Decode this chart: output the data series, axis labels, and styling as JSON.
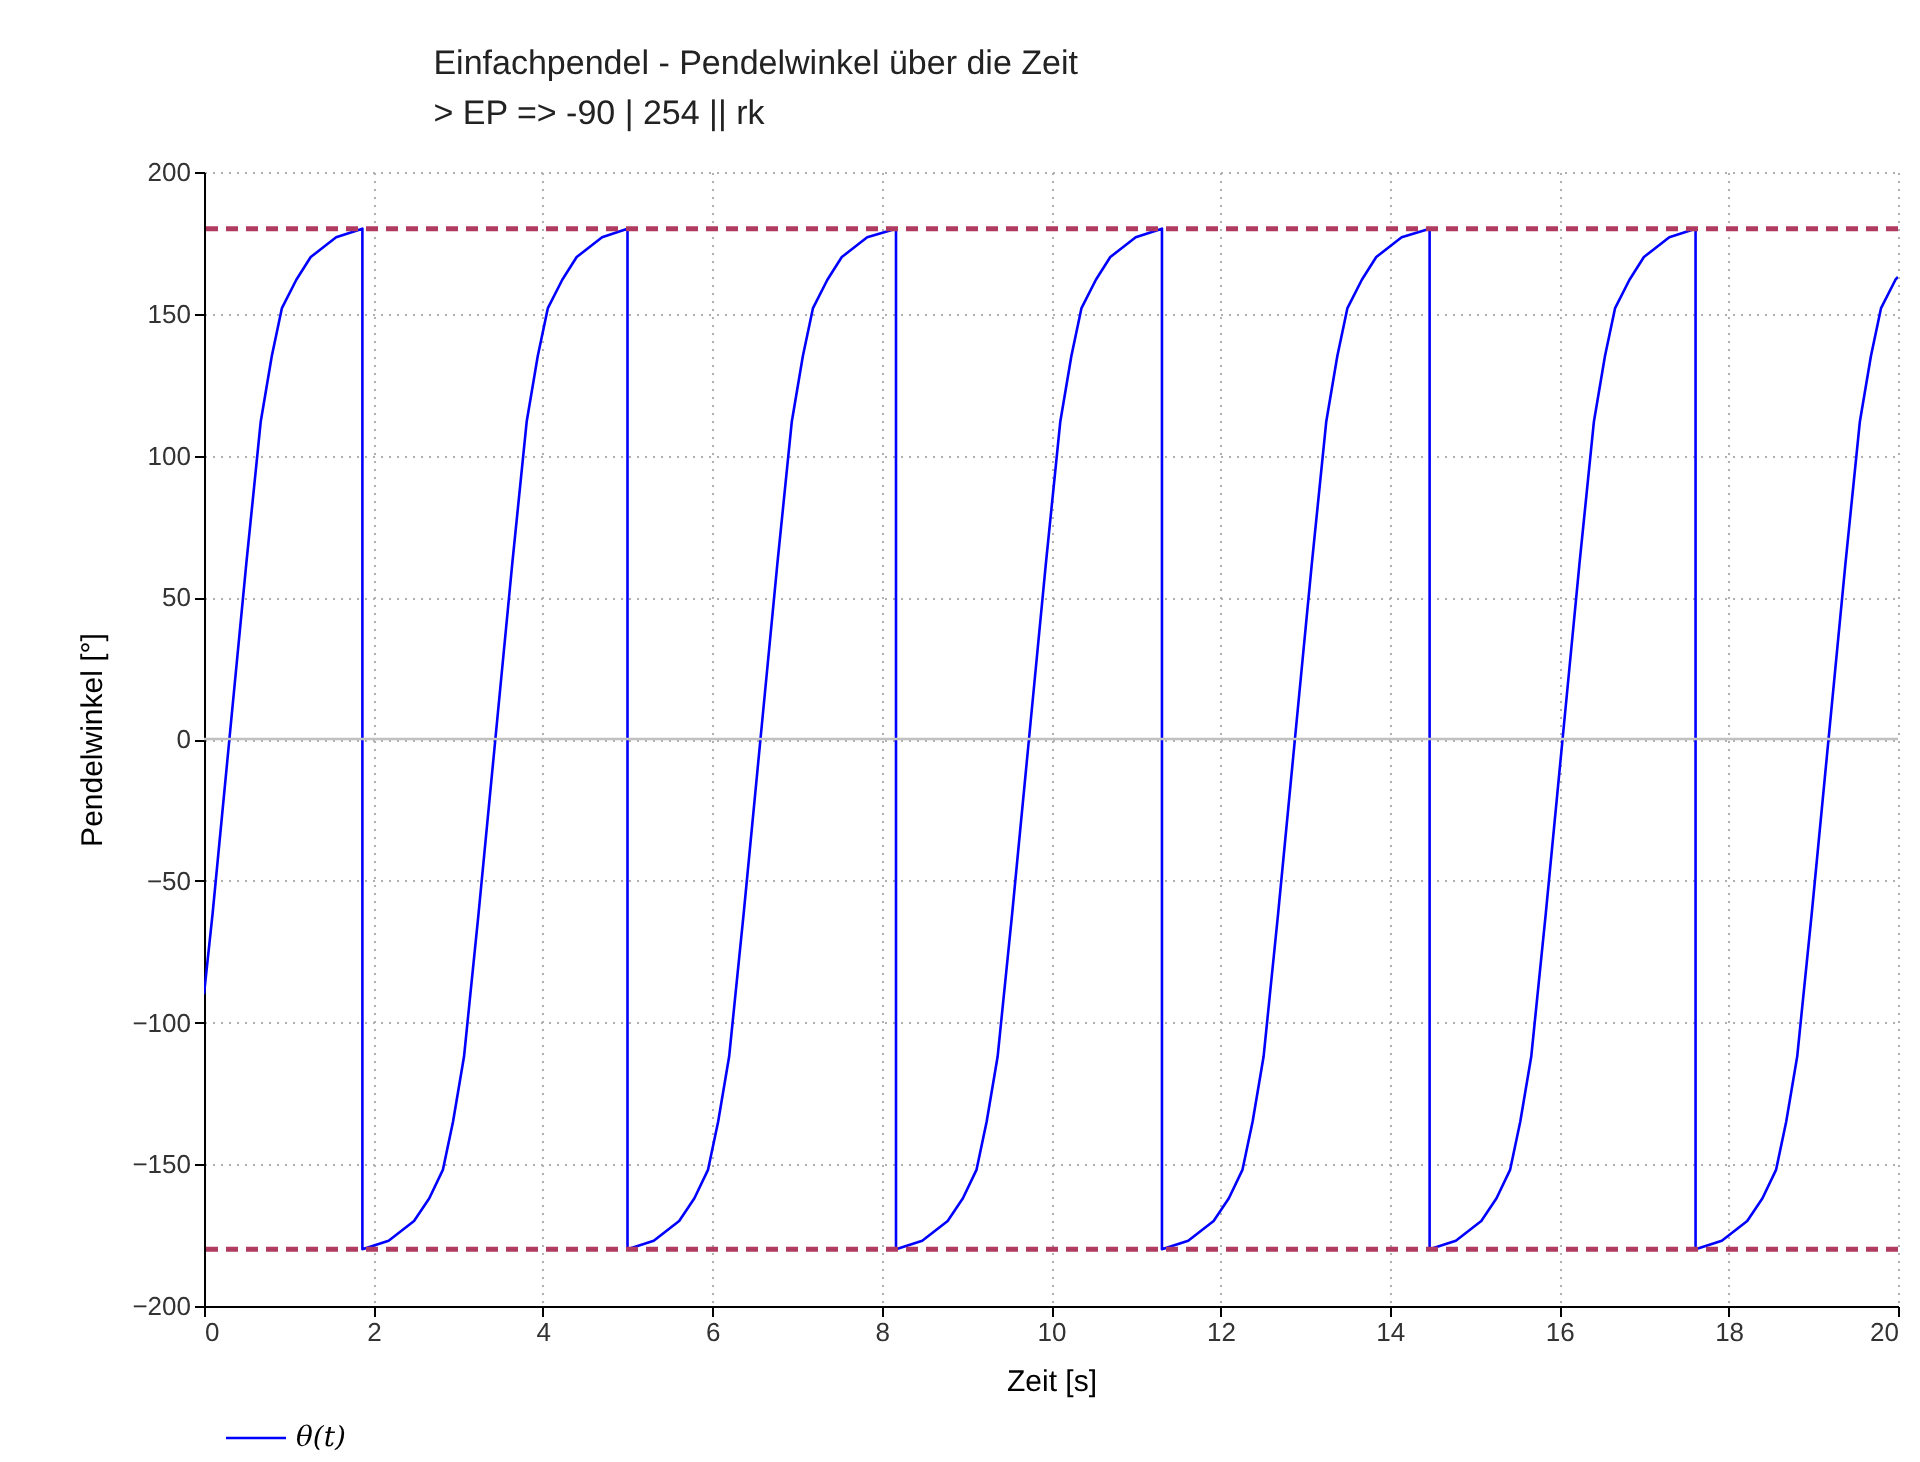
{
  "chart_data": {
    "type": "line",
    "title": "Einfachpendel - Pendelwinkel über die Zeit",
    "subtitle": ">   EP => -90 | 254 || rk",
    "xlabel": "Zeit [s]",
    "ylabel": "Pendelwinkel [°]",
    "xlim": [
      0,
      20
    ],
    "ylim": [
      -200,
      200
    ],
    "xticks": [
      0,
      2,
      4,
      6,
      8,
      10,
      12,
      14,
      16,
      18,
      20
    ],
    "yticks": [
      -200,
      -150,
      -100,
      -50,
      0,
      50,
      100,
      150,
      200
    ],
    "grid": true,
    "legend": "bottom left",
    "line_style": "solid",
    "ref_lines": [
      {
        "axis": "y",
        "value": 180,
        "color": "#b03a60",
        "line_style": "dashed"
      },
      {
        "axis": "y",
        "value": -180,
        "color": "#b03a60",
        "line_style": "dashed"
      },
      {
        "axis": "y",
        "value": 0,
        "color": "#c0c0c0",
        "line_style": "solid"
      }
    ],
    "series": [
      {
        "name": "θ(t)",
        "color": "#0000ff",
        "x": [
          0,
          0.1,
          0.3,
          0.5,
          0.67,
          0.8,
          0.92,
          1.09,
          1.26,
          1.56,
          1.87,
          1.87,
          2.18,
          2.48,
          2.66,
          2.82,
          2.94,
          3.07,
          3.24,
          3.44,
          3.64,
          3.81,
          3.94,
          4.06,
          4.23,
          4.4,
          4.7,
          5.0,
          5.0,
          5.31,
          5.61,
          5.79,
          5.95,
          6.07,
          6.2,
          6.37,
          6.57,
          6.77,
          6.94,
          7.07,
          7.19,
          7.36,
          7.53,
          7.83,
          8.17,
          8.17,
          8.48,
          8.78,
          8.96,
          9.12,
          9.24,
          9.37,
          9.54,
          9.74,
          9.94,
          10.11,
          10.24,
          10.36,
          10.53,
          10.7,
          11.0,
          11.31,
          11.31,
          11.62,
          11.92,
          12.1,
          12.26,
          12.38,
          12.51,
          12.68,
          12.88,
          13.08,
          13.25,
          13.38,
          13.5,
          13.67,
          13.84,
          14.14,
          14.47,
          14.47,
          14.78,
          15.08,
          15.26,
          15.42,
          15.54,
          15.67,
          15.84,
          16.04,
          16.24,
          16.41,
          16.54,
          16.66,
          16.83,
          17.0,
          17.3,
          17.61,
          17.61,
          17.92,
          18.22,
          18.4,
          18.56,
          18.68,
          18.81,
          18.98,
          19.18,
          19.38,
          19.55,
          19.68,
          19.8,
          19.97,
          20
        ],
        "values": [
          -90,
          -62,
          0,
          62,
          112,
          135,
          152,
          162,
          170,
          177,
          180,
          -180,
          -177,
          -170,
          -162,
          -152,
          -135,
          -112,
          -62,
          0,
          62,
          112,
          135,
          152,
          162,
          170,
          177,
          180,
          -180,
          -177,
          -170,
          -162,
          -152,
          -135,
          -112,
          -62,
          0,
          62,
          112,
          135,
          152,
          162,
          170,
          177,
          180,
          -180,
          -177,
          -170,
          -162,
          -152,
          -135,
          -112,
          -62,
          0,
          62,
          112,
          135,
          152,
          162,
          170,
          177,
          180,
          -180,
          -177,
          -170,
          -162,
          -152,
          -135,
          -112,
          -62,
          0,
          62,
          112,
          135,
          152,
          162,
          170,
          177,
          180,
          -180,
          -177,
          -170,
          -162,
          -152,
          -135,
          -112,
          -62,
          0,
          62,
          112,
          135,
          152,
          162,
          170,
          177,
          180,
          -180,
          -177,
          -170,
          -162,
          -152,
          -135,
          -112,
          -62,
          0,
          62,
          112,
          135,
          152,
          162,
          163
        ]
      }
    ]
  }
}
